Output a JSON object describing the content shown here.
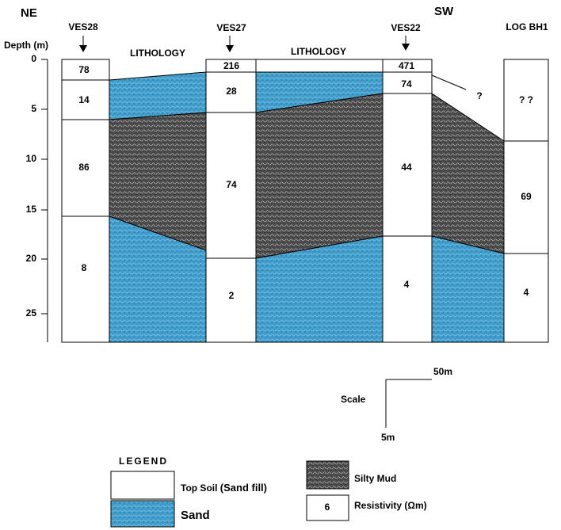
{
  "header": {
    "left_direction": "NE",
    "right_direction": "SW",
    "depth_label": "Depth (m)"
  },
  "depth_ticks": [
    0,
    5,
    10,
    15,
    20,
    25
  ],
  "columns": [
    {
      "label": "VES28",
      "resistivities": [
        78,
        14,
        86,
        8
      ]
    },
    {
      "label": "VES27",
      "resistivities": [
        216,
        28,
        74,
        2
      ]
    },
    {
      "label": "VES22",
      "resistivities": [
        471,
        74,
        44,
        4
      ]
    },
    {
      "label": "LOG BH1",
      "resistivities": [
        "? ?",
        69,
        4
      ]
    }
  ],
  "lithology_labels": [
    "LITHOLOGY",
    "LITHOLOGY"
  ],
  "unknown_mark": "?",
  "scale": {
    "label": "Scale",
    "horizontal": "50m",
    "vertical": "5m"
  },
  "legend": {
    "title": "LEGEND",
    "top_soil": "Top Soil",
    "top_soil_note": "(Sand fill)",
    "sand": "Sand",
    "silty_mud": "Silty Mud",
    "resistivity_example": 6,
    "resistivity": "Resistivity (Ωm)"
  }
}
